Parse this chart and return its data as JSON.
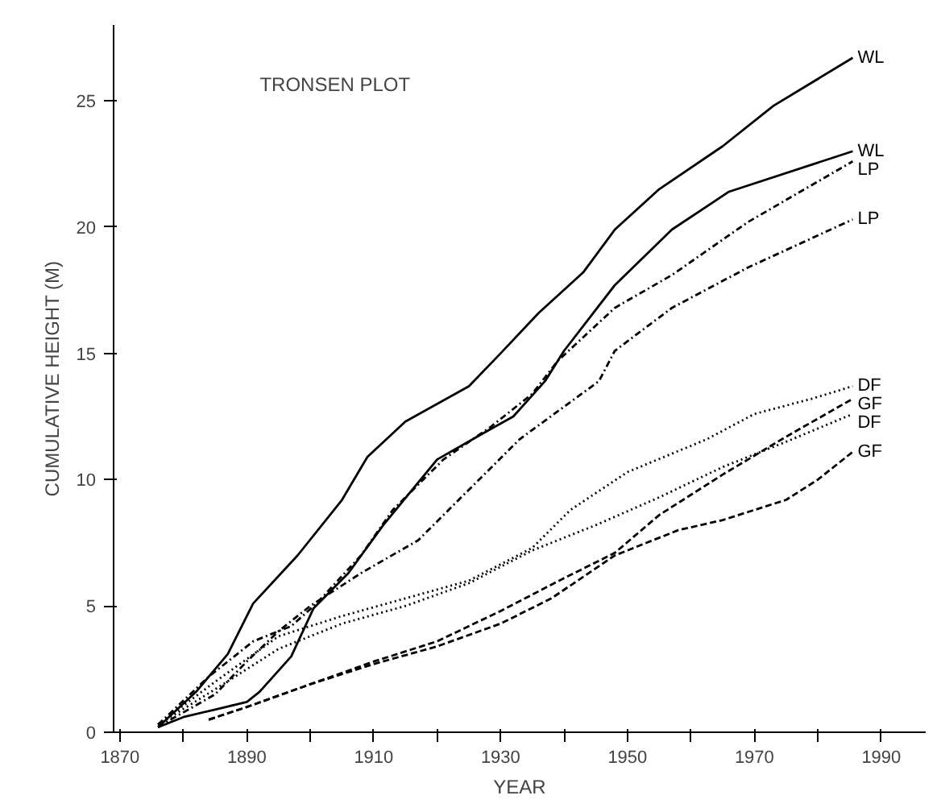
{
  "chart_data": {
    "type": "line",
    "title": "TRONSEN PLOT",
    "xlabel": "YEAR",
    "ylabel": "CUMULATIVE HEIGHT (M)",
    "xlim": [
      1869,
      1997
    ],
    "ylim": [
      0,
      28
    ],
    "xticks": [
      1870,
      {
        "value": 1880,
        "label": null
      },
      1890,
      {
        "value": 1900,
        "label": null
      },
      1910,
      {
        "value": 1920,
        "label": null
      },
      1930,
      {
        "value": 1940,
        "label": null
      },
      1950,
      {
        "value": 1960,
        "label": null
      },
      1970,
      {
        "value": 1980,
        "label": null
      },
      1990
    ],
    "yticks": [
      0,
      5,
      10,
      15,
      20,
      25
    ],
    "grid": false,
    "legend": false,
    "marker": "none",
    "series": [
      {
        "name": "WL",
        "color": "#000000",
        "line_style": "solid",
        "x": [
          1876,
          1882,
          1887,
          1891,
          1898,
          1905,
          1909,
          1915,
          1925,
          1930,
          1936,
          1943,
          1948,
          1955,
          1965,
          1973,
          1985.5
        ],
        "values": [
          0.2,
          1.6,
          3.1,
          5.1,
          7.0,
          9.2,
          10.9,
          12.3,
          13.7,
          15.0,
          16.6,
          18.2,
          19.9,
          21.5,
          23.2,
          24.8,
          26.7
        ]
      },
      {
        "name": "WL",
        "color": "#000000",
        "line_style": "solid",
        "x": [
          1876,
          1880,
          1885,
          1890,
          1892,
          1897,
          1900.5,
          1906,
          1911.5,
          1920,
          1927,
          1932,
          1937,
          1940,
          1948,
          1957,
          1966,
          1985.5
        ],
        "values": [
          0.2,
          0.6,
          0.9,
          1.2,
          1.6,
          3.0,
          4.9,
          6.3,
          8.2,
          10.8,
          11.8,
          12.5,
          13.9,
          15.1,
          17.7,
          19.9,
          21.4,
          23.0
        ]
      },
      {
        "name": "LP",
        "color": "#000000",
        "line_style": "dashdot",
        "x": [
          1876,
          1884,
          1891,
          1897,
          1901,
          1908,
          1913,
          1921,
          1928.5,
          1935,
          1939,
          1948,
          1957,
          1969,
          1985.5
        ],
        "values": [
          0.3,
          2.2,
          3.6,
          4.2,
          5.1,
          7.0,
          8.8,
          10.8,
          12.1,
          13.4,
          14.7,
          16.8,
          18.1,
          20.2,
          22.6
        ]
      },
      {
        "name": "LP",
        "color": "#000000",
        "line_style": "dashdot",
        "x": [
          1876,
          1878,
          1885,
          1890,
          1895,
          1900,
          1908,
          1917,
          1925,
          1933,
          1945.5,
          1948,
          1957,
          1969,
          1985.5
        ],
        "values": [
          0.2,
          0.5,
          1.5,
          2.8,
          4.0,
          5.0,
          6.3,
          7.6,
          9.6,
          11.6,
          13.9,
          15.1,
          16.8,
          18.4,
          20.3
        ]
      },
      {
        "name": "DF",
        "color": "#000000",
        "line_style": "dotted",
        "x": [
          1876,
          1885,
          1895,
          1905,
          1915,
          1925,
          1935,
          1941,
          1950,
          1962.5,
          1970,
          1979,
          1985.5
        ],
        "values": [
          0.3,
          2.0,
          3.8,
          4.6,
          5.3,
          6.0,
          7.3,
          8.8,
          10.3,
          11.6,
          12.6,
          13.2,
          13.7
        ]
      },
      {
        "name": "GF",
        "color": "#000000",
        "line_style": "dashed",
        "x": [
          1884,
          1890,
          1900,
          1910,
          1920,
          1930,
          1940,
          1948,
          1955,
          1965,
          1975,
          1985.5
        ],
        "values": [
          0.5,
          1.0,
          1.9,
          2.8,
          3.6,
          4.8,
          6.1,
          7.1,
          8.6,
          10.2,
          11.7,
          13.2
        ]
      },
      {
        "name": "DF",
        "color": "#000000",
        "line_style": "dotted",
        "x": [
          1876,
          1885,
          1895,
          1905,
          1915,
          1925,
          1935,
          1945,
          1955,
          1965,
          1975,
          1985.5
        ],
        "values": [
          0.3,
          1.7,
          3.3,
          4.3,
          5.0,
          5.9,
          7.2,
          8.2,
          9.3,
          10.5,
          11.5,
          12.6
        ]
      },
      {
        "name": "GF",
        "color": "#000000",
        "line_style": "dashed",
        "x": [
          1884,
          1890,
          1900,
          1910,
          1920,
          1930,
          1938,
          1948,
          1958,
          1965,
          1975,
          1980,
          1985.5
        ],
        "values": [
          0.5,
          1.0,
          1.9,
          2.7,
          3.4,
          4.3,
          5.3,
          7.0,
          8.0,
          8.4,
          9.2,
          10.0,
          11.1
        ]
      }
    ]
  }
}
